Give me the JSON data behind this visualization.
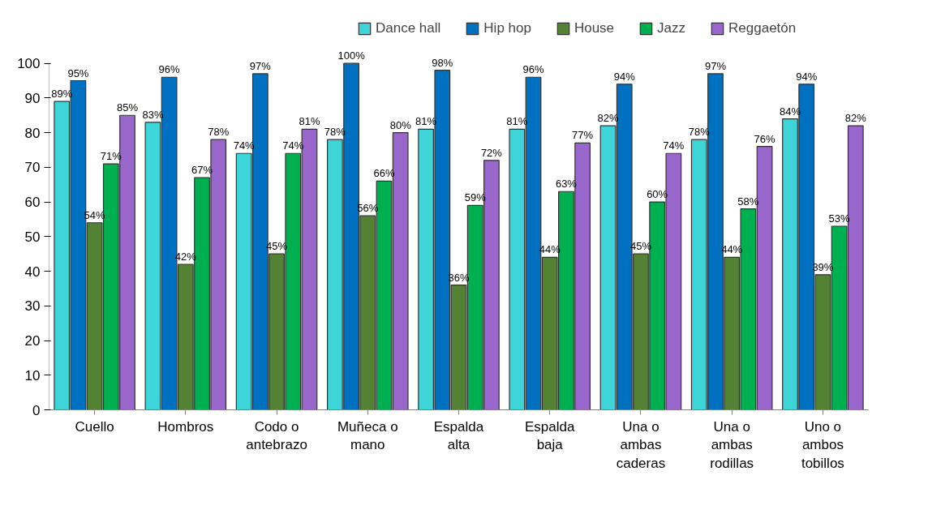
{
  "chart_data": {
    "type": "bar",
    "categories": [
      "Cuello",
      "Hombros",
      "Codo o antebrazo",
      "Muñeca o mano",
      "Espalda alta",
      "Espalda baja",
      "Una o ambas caderas",
      "Una o ambas rodillas",
      "Uno o ambos tobillos"
    ],
    "series": [
      {
        "name": "Dance hall",
        "color": "#3dd5d8",
        "values": [
          89,
          83,
          74,
          78,
          81,
          81,
          82,
          78,
          84
        ],
        "value_labels": [
          "89%",
          "83%",
          "74%",
          "78%",
          "81%",
          "81%",
          "82%",
          "78%",
          "84%"
        ]
      },
      {
        "name": "Hip hop",
        "color": "#0070c0",
        "values": [
          95,
          96,
          97,
          100,
          98,
          96,
          94,
          97,
          94
        ],
        "value_labels": [
          "95%",
          "96%",
          "97%",
          "100%",
          "98%",
          "96%",
          "94%",
          "97%",
          "94%"
        ]
      },
      {
        "name": "House",
        "color": "#548235",
        "values": [
          54,
          42,
          45,
          56,
          36,
          44,
          45,
          44,
          39
        ],
        "value_labels": [
          "54%",
          "42%",
          "45%",
          "56%",
          "36%",
          "44%",
          "45%",
          "44%",
          "39%"
        ]
      },
      {
        "name": "Jazz",
        "color": "#00b050",
        "values": [
          71,
          67,
          74,
          66,
          59,
          63,
          60,
          58,
          53
        ],
        "value_labels": [
          "71%",
          "67%",
          "74%",
          "66%",
          "59%",
          "63%",
          "60%",
          "58%",
          "53%"
        ]
      },
      {
        "name": "Reggaetón",
        "color": "#9966cc",
        "values": [
          85,
          78,
          81,
          80,
          72,
          77,
          74,
          76,
          82
        ],
        "value_labels": [
          "85%",
          "78%",
          "81%",
          "80%",
          "72%",
          "77%",
          "74%",
          "76%",
          "82%"
        ]
      }
    ],
    "ylim": [
      0,
      100
    ],
    "yticks": [
      0,
      10,
      20,
      30,
      40,
      50,
      60,
      70,
      80,
      90,
      100
    ],
    "grid": false,
    "legend": "top"
  }
}
